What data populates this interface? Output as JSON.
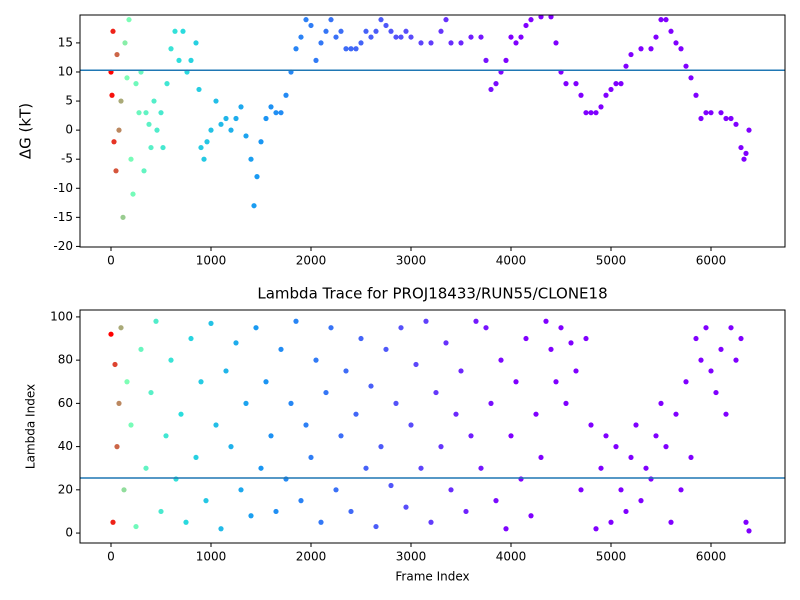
{
  "chart_data": [
    {
      "type": "scatter",
      "ylabel": "ΔG (kT)",
      "x": [
        0,
        10,
        20,
        30,
        50,
        60,
        80,
        100,
        120,
        140,
        160,
        180,
        200,
        220,
        250,
        280,
        300,
        330,
        350,
        380,
        400,
        430,
        460,
        500,
        520,
        560,
        600,
        640,
        680,
        720,
        760,
        800,
        850,
        880,
        900,
        930,
        960,
        1000,
        1050,
        1100,
        1150,
        1200,
        1250,
        1300,
        1350,
        1400,
        1430,
        1460,
        1500,
        1550,
        1600,
        1650,
        1700,
        1750,
        1800,
        1850,
        1900,
        1950,
        2000,
        2050,
        2100,
        2150,
        2200,
        2250,
        2300,
        2350,
        2400,
        2450,
        2500,
        2550,
        2600,
        2650,
        2700,
        2750,
        2800,
        2850,
        2900,
        2950,
        3000,
        3100,
        3200,
        3300,
        3350,
        3400,
        3500,
        3600,
        3700,
        3750,
        3800,
        3850,
        3900,
        3950,
        4000,
        4050,
        4100,
        4150,
        4200,
        4300,
        4400,
        4450,
        4500,
        4550,
        4650,
        4700,
        4750,
        4800,
        4850,
        4900,
        4950,
        5000,
        5050,
        5100,
        5150,
        5200,
        5300,
        5400,
        5450,
        5500,
        5550,
        5600,
        5650,
        5700,
        5750,
        5800,
        5850,
        5900,
        5950,
        6000,
        6100,
        6150,
        6200,
        6250,
        6300,
        6330,
        6350,
        6380
      ],
      "values": [
        10,
        6,
        17,
        -2,
        -7,
        13,
        0,
        5,
        -15,
        15,
        9,
        19,
        -5,
        -11,
        8,
        3,
        10,
        -7,
        3,
        1,
        -3,
        5,
        0,
        3,
        -3,
        8,
        14,
        17,
        12,
        17,
        10,
        12,
        15,
        7,
        -3,
        -5,
        -2,
        0,
        5,
        1,
        2,
        0,
        2,
        4,
        -1,
        -5,
        -13,
        -8,
        -2,
        2,
        4,
        3,
        3,
        6,
        10,
        14,
        16,
        19,
        18,
        12,
        15,
        17,
        19,
        16,
        17,
        14,
        14,
        14,
        15,
        17,
        16,
        17,
        19,
        18,
        17,
        16,
        16,
        17,
        16,
        15,
        15,
        17,
        19,
        15,
        15,
        16,
        16,
        12,
        7,
        8,
        10,
        12,
        16,
        15,
        16,
        18,
        19,
        19.5,
        19.5,
        15,
        10,
        8,
        8,
        6,
        3,
        3,
        3,
        4,
        6,
        7,
        8,
        8,
        11,
        13,
        14,
        14,
        16,
        19,
        19,
        17,
        15,
        14,
        11,
        9,
        6,
        2,
        3,
        3,
        3,
        2,
        2,
        1,
        -3,
        -5,
        -4,
        0
      ],
      "xlim": [
        -310,
        6740
      ],
      "ylim": [
        -20.1,
        19.8
      ],
      "xticks": [
        0,
        1000,
        2000,
        3000,
        4000,
        5000,
        6000
      ],
      "yticks": [
        -20,
        -15,
        -10,
        -5,
        0,
        5,
        10,
        15
      ],
      "hlines": [
        10.3
      ],
      "hline_color": "#1f77b4",
      "color_stops": [
        [
          0,
          "#ff0000"
        ],
        [
          150,
          "#80ffb4"
        ],
        [
          700,
          "#2adddd"
        ],
        [
          1500,
          "#1996f3"
        ],
        [
          3000,
          "#5a4bfa"
        ],
        [
          4000,
          "#8000ff"
        ]
      ]
    },
    {
      "type": "scatter",
      "title": "Lambda Trace for PROJ18433/RUN55/CLONE18",
      "xlabel": "Frame Index",
      "ylabel": "Lambda Index",
      "x": [
        0,
        20,
        40,
        60,
        80,
        100,
        130,
        160,
        200,
        250,
        300,
        350,
        400,
        450,
        500,
        550,
        600,
        650,
        700,
        750,
        800,
        850,
        900,
        950,
        1000,
        1050,
        1100,
        1150,
        1200,
        1250,
        1300,
        1350,
        1400,
        1450,
        1500,
        1550,
        1600,
        1650,
        1700,
        1750,
        1800,
        1850,
        1900,
        1950,
        2000,
        2050,
        2100,
        2150,
        2200,
        2250,
        2300,
        2350,
        2400,
        2450,
        2500,
        2550,
        2600,
        2650,
        2700,
        2750,
        2800,
        2850,
        2900,
        2950,
        3000,
        3050,
        3100,
        3150,
        3200,
        3250,
        3300,
        3350,
        3400,
        3450,
        3500,
        3550,
        3600,
        3650,
        3700,
        3750,
        3800,
        3850,
        3900,
        3950,
        4000,
        4050,
        4100,
        4150,
        4200,
        4250,
        4300,
        4350,
        4400,
        4450,
        4500,
        4550,
        4600,
        4650,
        4700,
        4750,
        4800,
        4850,
        4900,
        4950,
        5000,
        5050,
        5100,
        5150,
        5200,
        5250,
        5300,
        5350,
        5400,
        5450,
        5500,
        5550,
        5600,
        5650,
        5700,
        5750,
        5800,
        5850,
        5900,
        5950,
        6000,
        6050,
        6100,
        6150,
        6200,
        6250,
        6300,
        6350,
        6380
      ],
      "values": [
        92,
        5,
        78,
        40,
        60,
        95,
        20,
        70,
        50,
        3,
        85,
        30,
        65,
        98,
        10,
        45,
        80,
        25,
        55,
        5,
        90,
        35,
        70,
        15,
        97,
        50,
        2,
        75,
        40,
        88,
        20,
        60,
        8,
        95,
        30,
        70,
        45,
        10,
        85,
        25,
        60,
        98,
        15,
        50,
        35,
        80,
        5,
        65,
        95,
        20,
        45,
        75,
        10,
        55,
        90,
        30,
        68,
        3,
        40,
        85,
        22,
        60,
        95,
        12,
        50,
        78,
        30,
        98,
        5,
        65,
        40,
        88,
        20,
        55,
        75,
        10,
        45,
        98,
        30,
        95,
        60,
        15,
        80,
        2,
        45,
        70,
        25,
        90,
        8,
        55,
        35,
        98,
        85,
        70,
        95,
        60,
        88,
        75,
        20,
        90,
        50,
        2,
        30,
        45,
        5,
        40,
        20,
        10,
        35,
        50,
        15,
        30,
        25,
        45,
        60,
        40,
        5,
        55,
        20,
        70,
        35,
        90,
        80,
        95,
        75,
        65,
        85,
        55,
        95,
        80,
        90,
        5,
        1
      ],
      "xlim": [
        -310,
        6740
      ],
      "ylim": [
        -4.6,
        103.2
      ],
      "xticks": [
        0,
        1000,
        2000,
        3000,
        4000,
        5000,
        6000
      ],
      "yticks": [
        0,
        20,
        40,
        60,
        80,
        100
      ],
      "hlines": [
        25.5
      ],
      "hline_color": "#1f77b4",
      "color_stops": [
        [
          0,
          "#ff0000"
        ],
        [
          150,
          "#80ffb4"
        ],
        [
          700,
          "#2adddd"
        ],
        [
          1500,
          "#1996f3"
        ],
        [
          3000,
          "#5a4bfa"
        ],
        [
          4000,
          "#8000ff"
        ]
      ]
    }
  ]
}
